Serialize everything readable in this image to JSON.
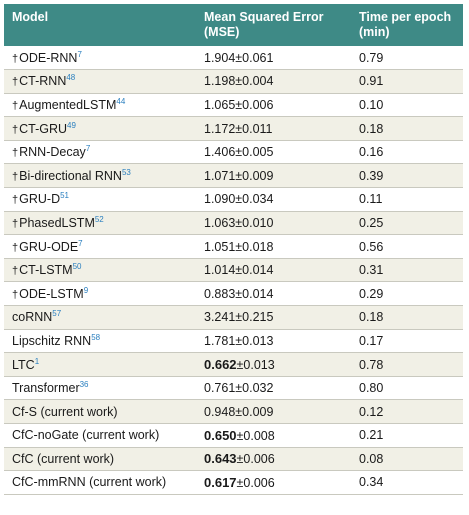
{
  "header": {
    "model": "Model",
    "mse_line1": "Mean Squared Error",
    "mse_line2": "(MSE)",
    "time_line1": "Time per epoch",
    "time_line2": "(min)"
  },
  "rows": [
    {
      "dagger": "†",
      "name": "ODE-RNN",
      "ref": "7",
      "mse_main": "1.904",
      "mse_err": "±0.061",
      "bold": false,
      "time": "0.79"
    },
    {
      "dagger": "†",
      "name": "CT-RNN",
      "ref": "48",
      "mse_main": "1.198",
      "mse_err": "±0.004",
      "bold": false,
      "time": "0.91"
    },
    {
      "dagger": "†",
      "name": "AugmentedLSTM",
      "ref": "44",
      "mse_main": "1.065",
      "mse_err": "±0.006",
      "bold": false,
      "time": "0.10"
    },
    {
      "dagger": "†",
      "name": "CT-GRU",
      "ref": "49",
      "mse_main": "1.172",
      "mse_err": "±0.011",
      "bold": false,
      "time": "0.18"
    },
    {
      "dagger": "†",
      "name": "RNN-Decay",
      "ref": "7",
      "mse_main": "1.406",
      "mse_err": "±0.005",
      "bold": false,
      "time": "0.16"
    },
    {
      "dagger": "†",
      "name": "Bi-directional RNN",
      "ref": "53",
      "mse_main": "1.071",
      "mse_err": "±0.009",
      "bold": false,
      "time": "0.39"
    },
    {
      "dagger": "†",
      "name": "GRU-D",
      "ref": "51",
      "mse_main": "1.090",
      "mse_err": "±0.034",
      "bold": false,
      "time": "0.11"
    },
    {
      "dagger": "†",
      "name": "PhasedLSTM",
      "ref": "52",
      "mse_main": "1.063",
      "mse_err": "±0.010",
      "bold": false,
      "time": "0.25"
    },
    {
      "dagger": "†",
      "name": "GRU-ODE",
      "ref": "7",
      "mse_main": "1.051",
      "mse_err": "±0.018",
      "bold": false,
      "time": "0.56"
    },
    {
      "dagger": "†",
      "name": "CT-LSTM",
      "ref": "50",
      "mse_main": "1.014",
      "mse_err": "±0.014",
      "bold": false,
      "time": "0.31"
    },
    {
      "dagger": "†",
      "name": "ODE-LSTM",
      "ref": "9",
      "mse_main": "0.883",
      "mse_err": "±0.014",
      "bold": false,
      "time": "0.29"
    },
    {
      "dagger": "",
      "name": "coRNN",
      "ref": "57",
      "mse_main": "3.241",
      "mse_err": "±0.215",
      "bold": false,
      "time": "0.18"
    },
    {
      "dagger": "",
      "name": "Lipschitz RNN",
      "ref": "58",
      "mse_main": "1.781",
      "mse_err": "±0.013",
      "bold": false,
      "time": "0.17"
    },
    {
      "dagger": "",
      "name": "LTC",
      "ref": "1",
      "mse_main": "0.662",
      "mse_err": "±0.013",
      "bold": true,
      "time": "0.78"
    },
    {
      "dagger": "",
      "name": "Transformer",
      "ref": "36",
      "mse_main": "0.761",
      "mse_err": "±0.032",
      "bold": false,
      "time": "0.80"
    },
    {
      "dagger": "",
      "name": "Cf-S (current work)",
      "ref": "",
      "mse_main": "0.948",
      "mse_err": "±0.009",
      "bold": false,
      "time": "0.12"
    },
    {
      "dagger": "",
      "name": "CfC-noGate (current work)",
      "ref": "",
      "mse_main": "0.650",
      "mse_err": "±0.008",
      "bold": true,
      "time": "0.21"
    },
    {
      "dagger": "",
      "name": "CfC (current work)",
      "ref": "",
      "mse_main": "0.643",
      "mse_err": "±0.006",
      "bold": true,
      "time": "0.08"
    },
    {
      "dagger": "",
      "name": "CfC-mmRNN (current work)",
      "ref": "",
      "mse_main": "0.617",
      "mse_err": "±0.006",
      "bold": true,
      "time": "0.34"
    }
  ]
}
